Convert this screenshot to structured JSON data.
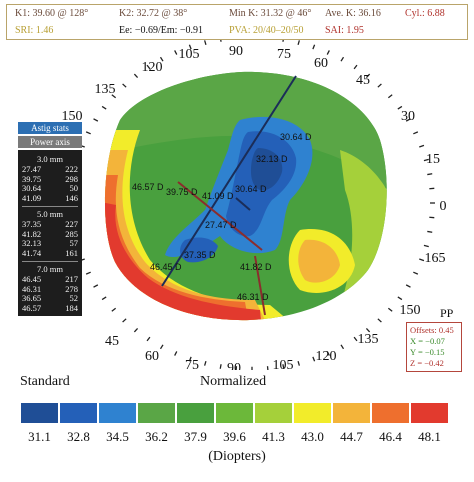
{
  "header": {
    "k1": "K1: 39.60 @ 128°",
    "k2": "K2: 32.72 @ 38°",
    "mink": "Min K: 31.32 @ 46°",
    "avek": "Ave. K: 36.16",
    "cyl": "Cyl.: 6.88",
    "sri": "SRI: 1.46",
    "ee": "Ee: −0.69/Em: −0.91",
    "pva": "PVA: 20/40–20/50",
    "sai": "SAI: 1.95"
  },
  "header_colors": {
    "dark": "#6a4a3a",
    "gold": "#b8a035",
    "red": "#b0322c"
  },
  "stats": {
    "astig_label": "Astig stats",
    "power_label": "Power axis",
    "groups": [
      {
        "title": "3.0 mm",
        "rows": [
          [
            "27.47",
            "222"
          ],
          [
            "39.75",
            "298"
          ],
          [
            "30.64",
            "50"
          ],
          [
            "41.09",
            "146"
          ]
        ]
      },
      {
        "title": "5.0 mm",
        "rows": [
          [
            "37.35",
            "227"
          ],
          [
            "41.82",
            "285"
          ],
          [
            "32.13",
            "57"
          ],
          [
            "41.74",
            "161"
          ]
        ]
      },
      {
        "title": "7.0 mm",
        "rows": [
          [
            "46.45",
            "217"
          ],
          [
            "46.31",
            "278"
          ],
          [
            "36.65",
            "52"
          ],
          [
            "46.57",
            "184"
          ]
        ]
      }
    ]
  },
  "map": {
    "axis_labels": [
      "0",
      "15",
      "30",
      "45",
      "60",
      "75",
      "90",
      "105",
      "120",
      "135",
      "150",
      "165",
      "150",
      "135",
      "120",
      "105",
      "90",
      "75",
      "60",
      "45"
    ],
    "values": [
      "30.64 D",
      "32.13 D",
      "39.75 D",
      "27.47 D",
      "30.64 D",
      "41.09 D",
      "46.57 D",
      "37.35 D",
      "46.45 D",
      "41.82 D",
      "46.31 D"
    ]
  },
  "pp": {
    "label": "PP",
    "offsets": "Offsets: 0.45",
    "x": "X = −0.07",
    "y": "Y = −0.15",
    "z": "Z = −0.42"
  },
  "legend": {
    "standard": "Standard",
    "normalized": "Normalized",
    "units": "(Diopters)",
    "ticks": [
      "31.1",
      "32.8",
      "34.5",
      "36.2",
      "37.9",
      "39.6",
      "41.3",
      "43.0",
      "44.7",
      "46.4",
      "48.1"
    ],
    "colors": [
      "#1f4e96",
      "#2460b8",
      "#2f82d0",
      "#5aa646",
      "#49a03e",
      "#6cb83a",
      "#a5d03a",
      "#f2ec2a",
      "#f3b43a",
      "#ee6f2e",
      "#e23a2e"
    ]
  }
}
